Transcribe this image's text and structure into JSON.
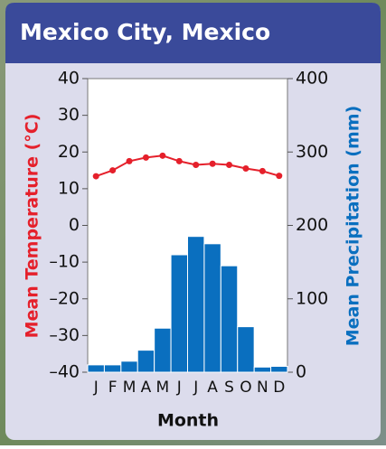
{
  "chart_data": {
    "type": "climograph",
    "title": "Mexico City, Mexico",
    "ylabel": "Mean Temperature (°C)",
    "y2label": "Mean Precipitation (mm)",
    "xlabel": "Month",
    "categories": [
      "J",
      "F",
      "M",
      "A",
      "M",
      "J",
      "J",
      "A",
      "S",
      "O",
      "N",
      "D"
    ],
    "ylim": [
      -40,
      40
    ],
    "yticks": [
      {
        "value": -40,
        "label": "–40"
      },
      {
        "value": -30,
        "label": "–30"
      },
      {
        "value": -20,
        "label": "–20"
      },
      {
        "value": -10,
        "label": "–10"
      },
      0,
      10,
      20,
      30,
      40
    ],
    "y2lim": [
      0,
      400
    ],
    "y2ticks": [
      0,
      100,
      200,
      300,
      400
    ],
    "series": [
      {
        "type": "bar",
        "axis": "y2",
        "color": "#0a6fbf",
        "values": [
          10,
          10,
          15,
          30,
          60,
          160,
          185,
          175,
          145,
          62,
          7,
          8
        ]
      },
      {
        "type": "line",
        "color": "#e5202b",
        "values": [
          13.4,
          15,
          17.5,
          18.5,
          19,
          17.5,
          16.5,
          16.8,
          16.5,
          15.5,
          14.8,
          13.5
        ]
      }
    ]
  }
}
